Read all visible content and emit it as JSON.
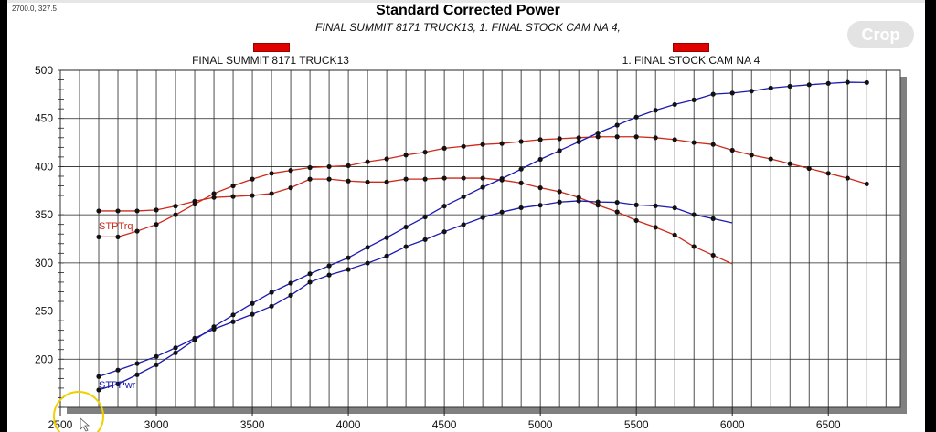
{
  "coord_readout": "2700.0, 327.5",
  "crop_button": "Crop",
  "colors": {
    "torque": "#cc2a1a",
    "power": "#1a1ab0",
    "legend_swatch": "#e00000"
  },
  "chart_data": {
    "type": "line",
    "title": "Standard Corrected Power",
    "subtitle": "FINAL SUMMIT 8171 TRUCK13, 1. FINAL STOCK CAM NA 4,",
    "legend": [
      "FINAL SUMMIT 8171 TRUCK13",
      "1. FINAL STOCK CAM NA 4"
    ],
    "legend_placement": "top",
    "xlim": [
      2500,
      6875
    ],
    "ylim": [
      150,
      500
    ],
    "xticks": [
      2500,
      3000,
      3500,
      4000,
      4500,
      5000,
      5500,
      6000,
      6500
    ],
    "yticks": [
      200,
      250,
      300,
      350,
      400,
      450,
      500
    ],
    "grid": true,
    "series_labels": {
      "torque": "STPTrq",
      "power": "STPPwr"
    },
    "series": [
      {
        "kind": "torque",
        "x": [
          2700,
          2800,
          2900,
          3000,
          3100,
          3200,
          3300,
          3400,
          3500,
          3600,
          3700,
          3800,
          3900,
          4000,
          4100,
          4200,
          4300,
          4400,
          4500,
          4600,
          4700,
          4800,
          4900,
          5000,
          5100,
          5200,
          5300,
          5400,
          5500,
          5600,
          5700,
          5800,
          5900,
          6000
        ],
        "y": [
          354,
          354,
          354,
          355,
          359,
          364,
          368,
          369,
          370,
          372,
          378,
          387,
          387,
          385,
          384,
          384,
          387,
          387,
          388,
          388,
          388,
          386,
          383,
          378,
          374,
          368,
          360,
          353,
          344,
          337,
          329,
          317,
          308,
          299
        ]
      },
      {
        "kind": "torque",
        "x": [
          2700,
          2800,
          2900,
          3000,
          3100,
          3200,
          3300,
          3400,
          3500,
          3600,
          3700,
          3800,
          3900,
          4000,
          4100,
          4200,
          4300,
          4400,
          4500,
          4600,
          4700,
          4800,
          4900,
          5000,
          5100,
          5200,
          5300,
          5400,
          5500,
          5600,
          5700,
          5800,
          5900,
          6000,
          6100,
          6200,
          6300,
          6400,
          6500,
          6600,
          6700
        ],
        "y": [
          327,
          327,
          333,
          340,
          350,
          361,
          372,
          380,
          387,
          393,
          396,
          399,
          400,
          401,
          405,
          408,
          412,
          415,
          419,
          421,
          423,
          424,
          426,
          428,
          429,
          430,
          431,
          431,
          431,
          430,
          428,
          425,
          423,
          417,
          412,
          408,
          403,
          398,
          393,
          388,
          382
        ]
      },
      {
        "kind": "power",
        "x": [
          2700,
          2800,
          2900,
          3000,
          3100,
          3200,
          3300,
          3400,
          3500,
          3600,
          3700,
          3800,
          3900,
          4000,
          4100,
          4200,
          4300,
          4400,
          4500,
          4600,
          4700,
          4800,
          4900,
          5000,
          5100,
          5200,
          5300,
          5400,
          5500,
          5600,
          5700,
          5800,
          5900,
          6000
        ],
        "y": [
          182.0,
          188.7,
          195.5,
          202.8,
          211.9,
          221.8,
          231.2,
          238.9,
          246.6,
          255.0,
          266.3,
          280.0,
          287.4,
          293.2,
          299.8,
          307.1,
          316.9,
          324.2,
          332.4,
          339.8,
          347.2,
          352.8,
          357.3,
          359.9,
          363.2,
          364.4,
          363.3,
          362.9,
          360.2,
          359.3,
          357.1,
          350.1,
          346.0,
          341.6
        ]
      },
      {
        "kind": "power",
        "x": [
          2700,
          2800,
          2900,
          3000,
          3100,
          3200,
          3300,
          3400,
          3500,
          3600,
          3700,
          3800,
          3900,
          4000,
          4100,
          4200,
          4300,
          4400,
          4500,
          4600,
          4700,
          4800,
          4900,
          5000,
          5100,
          5200,
          5300,
          5400,
          5500,
          5600,
          5700,
          5800,
          5900,
          6000,
          6100,
          6200,
          6300,
          6400,
          6500,
          6600,
          6700
        ],
        "y": [
          168.1,
          174.3,
          183.9,
          194.2,
          206.6,
          220.0,
          233.7,
          246.0,
          257.9,
          269.4,
          279.0,
          288.7,
          297.0,
          305.4,
          316.2,
          326.3,
          337.3,
          347.7,
          359.0,
          368.7,
          378.5,
          387.5,
          397.4,
          407.5,
          416.6,
          425.7,
          434.9,
          443.1,
          451.4,
          458.5,
          464.5,
          469.3,
          475.2,
          476.4,
          478.5,
          481.6,
          483.4,
          485.0,
          486.4,
          487.6,
          487.3
        ]
      }
    ]
  }
}
